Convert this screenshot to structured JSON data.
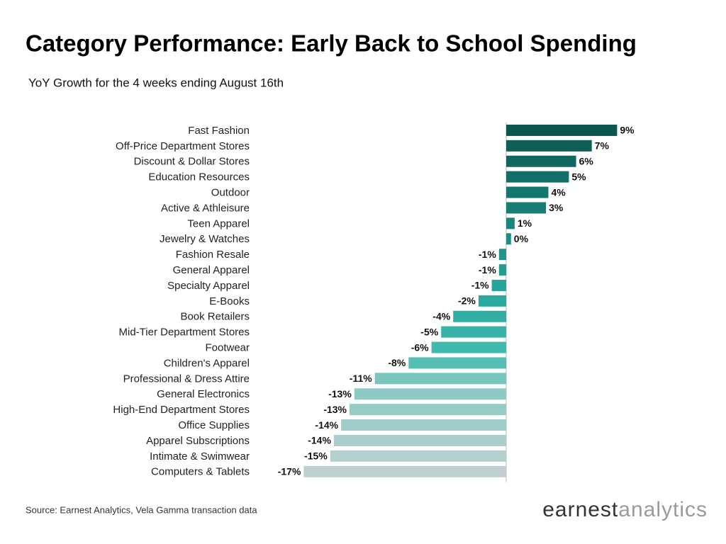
{
  "chart_data": {
    "type": "barh",
    "title": "Category Performance: Early Back to School Spending",
    "subtitle": "YoY Growth for the 4 weeks ending August 16th",
    "source": "Source: Earnest Analytics, Vela Gamma transaction data",
    "brand": [
      "earnest",
      "analytics"
    ],
    "categories": [
      "Fast Fashion",
      "Off-Price Department Stores",
      "Discount & Dollar Stores",
      "Education Resources",
      "Outdoor",
      "Active & Athleisure",
      "Teen Apparel",
      "Jewelry & Watches",
      "Fashion Resale",
      "General Apparel",
      "Specialty Apparel",
      "E-Books",
      "Book Retailers",
      "Mid-Tier Department Stores",
      "Footwear",
      "Children's Apparel",
      "Professional & Dress Attire",
      "General Electronics",
      "High-End Department Stores",
      "Office Supplies",
      "Apparel Subscriptions",
      "Intimate & Swimwear",
      "Computers & Tablets"
    ],
    "values": [
      9.2,
      7.1,
      5.8,
      5.2,
      3.5,
      3.3,
      0.7,
      0.4,
      -0.6,
      -0.6,
      -1.2,
      -2.3,
      -4.4,
      -5.4,
      -6.2,
      -8.1,
      -10.9,
      -12.6,
      -13.0,
      -13.7,
      -14.3,
      -14.6,
      -16.8
    ],
    "value_labels": [
      "9%",
      "7%",
      "6%",
      "5%",
      "4%",
      "3%",
      "1%",
      "0%",
      "-1%",
      "-1%",
      "-1%",
      "-2%",
      "-4%",
      "-5%",
      "-6%",
      "-8%",
      "-11%",
      "-13%",
      "-13%",
      "-14%",
      "-14%",
      "-15%",
      "-17%"
    ],
    "colors": [
      "#0b5650",
      "#0e5f58",
      "#10675f",
      "#126e66",
      "#15766d",
      "#177d74",
      "#1a867c",
      "#1d8e84",
      "#20968b",
      "#239d92",
      "#27a499",
      "#2aa99e",
      "#2fafa4",
      "#36b4a9",
      "#40b9ae",
      "#55bfb5",
      "#77c6bd",
      "#8dcac3",
      "#96ccc6",
      "#9fcdc9",
      "#a9cecc",
      "#b3d0cf",
      "#bfcfd2"
    ],
    "xlim": [
      -17,
      9.5
    ]
  }
}
